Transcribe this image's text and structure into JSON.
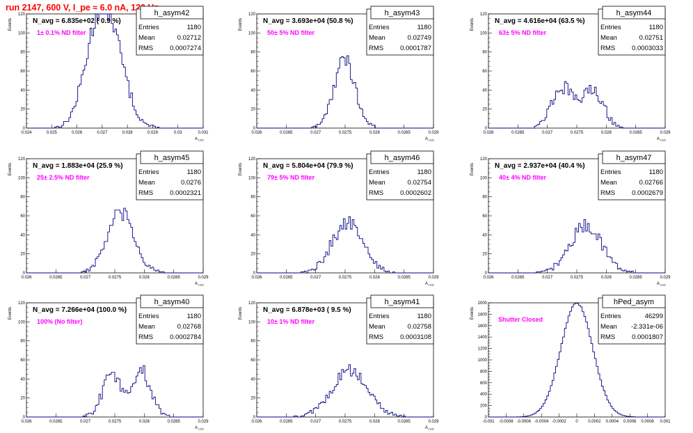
{
  "page": {
    "title": "run 2147,   600 V, I_pe ≈ 6.0 nA, 120 Hz"
  },
  "colors": {
    "line": "#000080",
    "filter_text": "#ff00ff",
    "title": "#ff0000"
  },
  "chart_data": [
    {
      "type": "histogram",
      "name": "h_asym42",
      "navg": "N_avg = 6.835e+02 ( 0.9 %)",
      "filter": "1± 0.1% ND filter",
      "stats": {
        "entries": "1180",
        "mean": "0.02712",
        "rms": "0.0007274"
      },
      "xlim": [
        0.024,
        0.031
      ],
      "xticks": [
        "0.024",
        "0.025",
        "0.026",
        "0.027",
        "0.028",
        "0.029",
        "0.03",
        "0.031"
      ],
      "ylim": [
        0,
        120
      ],
      "yticks": [
        "0",
        "20",
        "40",
        "60",
        "80",
        "100",
        "120"
      ],
      "ylabel": "Events",
      "xlabel": "A_LED",
      "centers": [
        0.0264,
        0.0267,
        0.027,
        0.0273,
        0.0276,
        0.0279
      ],
      "widths": [
        0.0005,
        0.0005,
        0.0005,
        0.0005,
        0.0005,
        0.0005
      ],
      "peaks": [
        10,
        44,
        44,
        40,
        22,
        9
      ]
    },
    {
      "type": "histogram",
      "name": "h_asym43",
      "navg": "N_avg = 3.693e+04 (50.8 %)",
      "filter": "50± 5% ND filter",
      "stats": {
        "entries": "1180",
        "mean": "0.02749",
        "rms": "0.0001787"
      },
      "xlim": [
        0.026,
        0.029
      ],
      "xticks": [
        "0.026",
        "0.0265",
        "0.027",
        "0.0275",
        "0.028",
        "0.0285",
        "0.029"
      ],
      "ylim": [
        0,
        120
      ],
      "yticks": [
        "0",
        "20",
        "40",
        "60",
        "80",
        "100",
        "120"
      ],
      "ylabel": "Events",
      "xlabel": "A_LED",
      "centers": [
        0.02749
      ],
      "widths": [
        0.00018
      ],
      "peaks": [
        72
      ]
    },
    {
      "type": "histogram",
      "name": "h_asym44",
      "navg": "N_avg = 4.616e+04 (63.5 %)",
      "filter": "63± 5% ND filter",
      "stats": {
        "entries": "1180",
        "mean": "0.02751",
        "rms": "0.0003033"
      },
      "xlim": [
        0.026,
        0.029
      ],
      "xticks": [
        "0.026",
        "0.0265",
        "0.027",
        "0.0275",
        "0.028",
        "0.0285",
        "0.029"
      ],
      "ylim": [
        0,
        120
      ],
      "yticks": [
        "0",
        "20",
        "40",
        "60",
        "80",
        "100",
        "120"
      ],
      "ylabel": "Events",
      "xlabel": "A_LED",
      "centers": [
        0.02725,
        0.02777
      ],
      "widths": [
        0.00018,
        0.00018
      ],
      "peaks": [
        43,
        41
      ]
    },
    {
      "type": "histogram",
      "name": "h_asym45",
      "navg": "N_avg = 1.883e+04 (25.9 %)",
      "filter": "25± 2.5% ND filter",
      "stats": {
        "entries": "1180",
        "mean": "0.0276",
        "rms": "0.0002321"
      },
      "xlim": [
        0.026,
        0.029
      ],
      "xticks": [
        "0.026",
        "0.0265",
        "0.027",
        "0.0275",
        "0.028",
        "0.0285",
        "0.029"
      ],
      "ylim": [
        0,
        120
      ],
      "yticks": [
        "0",
        "20",
        "40",
        "60",
        "80",
        "100",
        "120"
      ],
      "ylabel": "Events",
      "xlabel": "A_LED",
      "centers": [
        0.0276
      ],
      "widths": [
        0.00023
      ],
      "peaks": [
        62
      ]
    },
    {
      "type": "histogram",
      "name": "h_asym46",
      "navg": "N_avg = 5.804e+04 (79.9 %)",
      "filter": "79± 5% ND filter",
      "stats": {
        "entries": "1180",
        "mean": "0.02754",
        "rms": "0.0002602"
      },
      "xlim": [
        0.026,
        0.029
      ],
      "xticks": [
        "0.026",
        "0.0265",
        "0.027",
        "0.0275",
        "0.028",
        "0.0285",
        "0.029"
      ],
      "ylim": [
        0,
        120
      ],
      "yticks": [
        "0",
        "20",
        "40",
        "60",
        "80",
        "100",
        "120"
      ],
      "ylabel": "Events",
      "xlabel": "A_LED",
      "centers": [
        0.02754
      ],
      "widths": [
        0.00026
      ],
      "peaks": [
        53
      ]
    },
    {
      "type": "histogram",
      "name": "h_asym47",
      "navg": "N_avg = 2.937e+04 (40.4 %)",
      "filter": "40± 4% ND filter",
      "stats": {
        "entries": "1180",
        "mean": "0.02766",
        "rms": "0.0002679"
      },
      "xlim": [
        0.026,
        0.029
      ],
      "xticks": [
        "0.026",
        "0.0265",
        "0.027",
        "0.0275",
        "0.028",
        "0.0285",
        "0.029"
      ],
      "ylim": [
        0,
        120
      ],
      "yticks": [
        "0",
        "20",
        "40",
        "60",
        "80",
        "100",
        "120"
      ],
      "ylabel": "Events",
      "xlabel": "A_LED",
      "centers": [
        0.02766
      ],
      "widths": [
        0.00027
      ],
      "peaks": [
        50
      ]
    },
    {
      "type": "histogram",
      "name": "h_asym40",
      "navg": "N_avg = 7.266e+04 (100.0 %)",
      "filter": "100% (No filter)",
      "stats": {
        "entries": "1180",
        "mean": "0.02768",
        "rms": "0.0002784"
      },
      "xlim": [
        0.026,
        0.029
      ],
      "xticks": [
        "0.026",
        "0.0265",
        "0.027",
        "0.0275",
        "0.028",
        "0.0285",
        "0.029"
      ],
      "ylim": [
        0,
        120
      ],
      "yticks": [
        "0",
        "20",
        "40",
        "60",
        "80",
        "100",
        "120"
      ],
      "ylabel": "Events",
      "xlabel": "A_LED",
      "centers": [
        0.02745,
        0.02795
      ],
      "widths": [
        0.00016,
        0.00016
      ],
      "peaks": [
        44,
        48
      ]
    },
    {
      "type": "histogram",
      "name": "h_asym41",
      "navg": "N_avg = 6.878e+03 ( 9.5 %)",
      "filter": "10± 1% ND filter",
      "stats": {
        "entries": "1180",
        "mean": "0.02758",
        "rms": "0.0003108"
      },
      "xlim": [
        0.026,
        0.029
      ],
      "xticks": [
        "0.026",
        "0.0265",
        "0.027",
        "0.0275",
        "0.028",
        "0.0285",
        "0.029"
      ],
      "ylim": [
        0,
        120
      ],
      "yticks": [
        "0",
        "20",
        "40",
        "60",
        "80",
        "100",
        "120"
      ],
      "ylabel": "Events",
      "xlabel": "A_LED",
      "centers": [
        0.02758
      ],
      "widths": [
        0.00031
      ],
      "peaks": [
        48
      ]
    },
    {
      "type": "histogram",
      "name": "hPed_asym",
      "navg": "",
      "filter": "Shutter Closed",
      "stats": {
        "entries": "46299",
        "mean": "-2.331e-06",
        "rms": "0.0001807"
      },
      "xlim": [
        -0.001,
        0.001
      ],
      "xticks": [
        "-0.001",
        "-0.0008",
        "-0.0006",
        "-0.0004",
        "-0.0002",
        "0",
        "0.0002",
        "0.0004",
        "0.0006",
        "0.0008",
        "0.001"
      ],
      "ylim": [
        0,
        2000
      ],
      "yticks": [
        "0",
        "200",
        "400",
        "600",
        "800",
        "1000",
        "1200",
        "1400",
        "1600",
        "1800",
        "2000"
      ],
      "ylabel": "Events",
      "xlabel": "",
      "centers": [
        0.0
      ],
      "widths": [
        0.00018
      ],
      "peaks": [
        2000
      ]
    }
  ]
}
